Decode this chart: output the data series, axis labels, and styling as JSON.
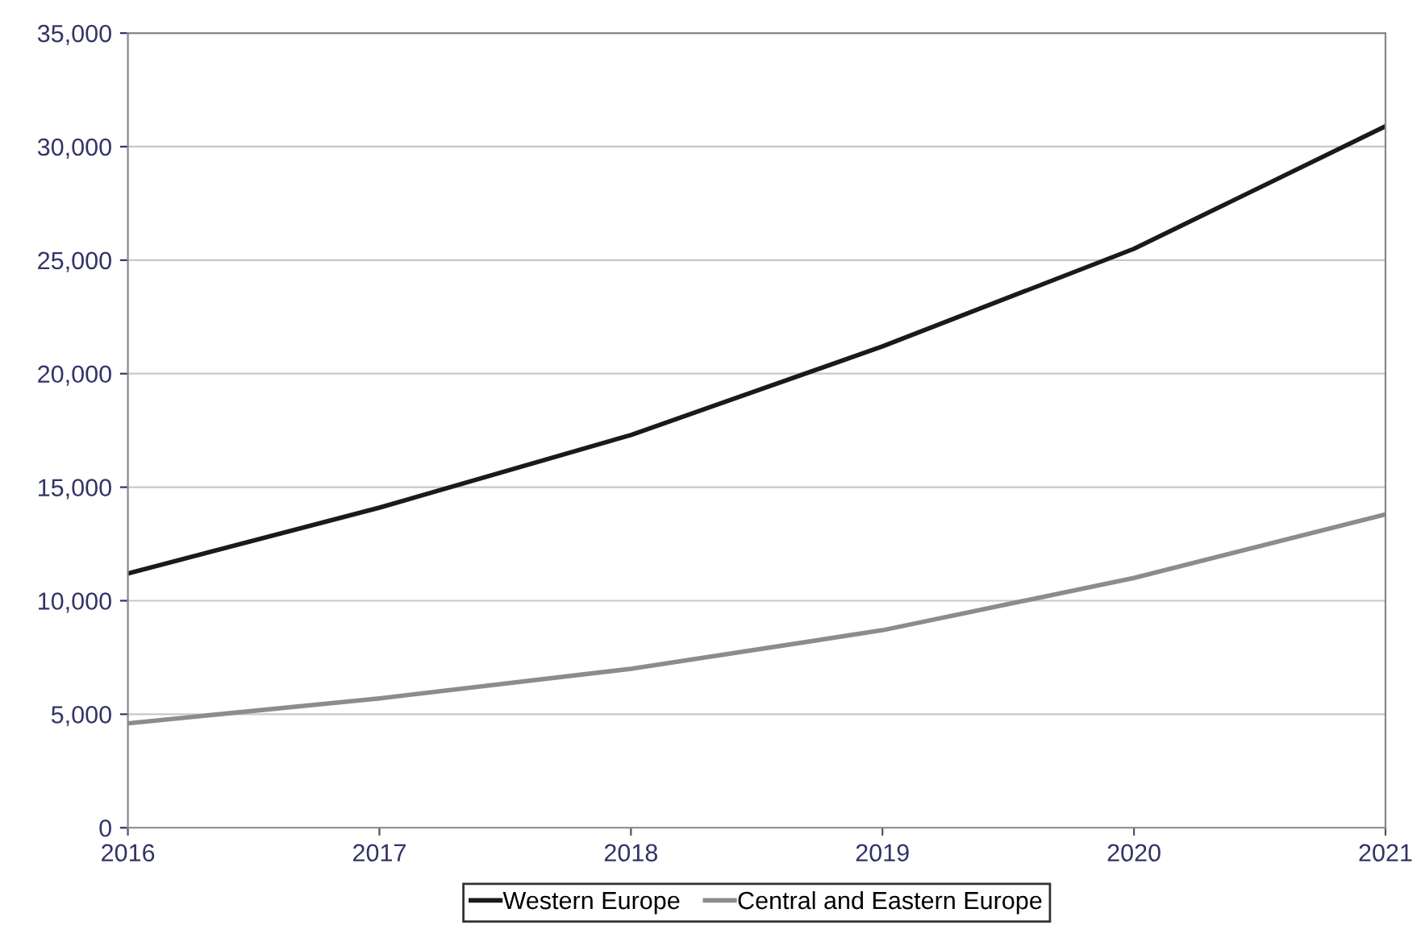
{
  "chart_data": {
    "type": "line",
    "x": [
      2016,
      2017,
      2018,
      2019,
      2020,
      2021
    ],
    "series": [
      {
        "name": "Western Europe",
        "color": "#1a1a1a",
        "values": [
          11200,
          14100,
          17300,
          21200,
          25500,
          30900
        ]
      },
      {
        "name": "Central and Eastern Europe",
        "color": "#8c8c8c",
        "values": [
          4600,
          5700,
          7000,
          8700,
          11000,
          13800
        ]
      }
    ],
    "xlim": [
      2016,
      2021
    ],
    "xticks": [
      2016,
      2017,
      2018,
      2019,
      2020,
      2021
    ],
    "ylim": [
      0,
      35000
    ],
    "yticks": [
      {
        "value": 0,
        "label": "0"
      },
      {
        "value": 5000,
        "label": "5,000"
      },
      {
        "value": 10000,
        "label": "10,000"
      },
      {
        "value": 15000,
        "label": "15,000"
      },
      {
        "value": 20000,
        "label": "20,000"
      },
      {
        "value": 25000,
        "label": "25,000"
      },
      {
        "value": 30000,
        "label": "30,000"
      },
      {
        "value": 35000,
        "label": "35,000"
      }
    ],
    "grid": "y",
    "legend": "bottom",
    "marker": "none",
    "line_style": "solid"
  }
}
